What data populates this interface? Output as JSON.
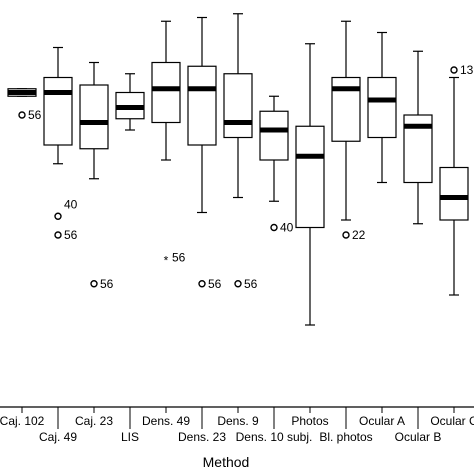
{
  "chart_data": {
    "type": "boxplot",
    "xlabel": "Method",
    "ylim": [
      0,
      100
    ],
    "grid": false,
    "categories": [
      "Caj. 102",
      "Caj. 49",
      "Caj. 23",
      "LIS",
      "Dens. 49",
      "Dens. 23",
      "Dens. 9",
      "Dens. 10 subj.",
      "Photos",
      "Bl. photos",
      "Ocular A",
      "Ocular B",
      "Ocular C"
    ],
    "boxes": [
      {
        "category": "Caj. 102",
        "whisker_low": 77,
        "q1": 77,
        "median": 78,
        "q3": 79,
        "whisker_high": 79,
        "outliers": [
          {
            "value": 72,
            "label": "56",
            "marker": "circle"
          }
        ]
      },
      {
        "category": "Caj. 49",
        "whisker_low": 59,
        "q1": 64,
        "median": 78,
        "q3": 82,
        "whisker_high": 90,
        "outliers": [
          {
            "value": 45,
            "label": "40",
            "marker": "circle"
          },
          {
            "value": 40,
            "label": "56",
            "marker": "circle"
          }
        ]
      },
      {
        "category": "Caj. 23",
        "whisker_low": 55,
        "q1": 63,
        "median": 70,
        "q3": 80,
        "whisker_high": 86,
        "outliers": [
          {
            "value": 27,
            "label": "56",
            "marker": "circle"
          }
        ]
      },
      {
        "category": "LIS",
        "whisker_low": 68,
        "q1": 71,
        "median": 74,
        "q3": 78,
        "whisker_high": 83,
        "outliers": []
      },
      {
        "category": "Dens. 49",
        "whisker_low": 60,
        "q1": 70,
        "median": 79,
        "q3": 86,
        "whisker_high": 97,
        "outliers": [
          {
            "value": 34,
            "label": "56",
            "marker": "star"
          }
        ]
      },
      {
        "category": "Dens. 23",
        "whisker_low": 46,
        "q1": 64,
        "median": 79,
        "q3": 85,
        "whisker_high": 98,
        "outliers": [
          {
            "value": 27,
            "label": "56",
            "marker": "circle"
          }
        ]
      },
      {
        "category": "Dens. 9",
        "whisker_low": 50,
        "q1": 66,
        "median": 70,
        "q3": 83,
        "whisker_high": 99,
        "outliers": [
          {
            "value": 27,
            "label": "56",
            "marker": "circle"
          }
        ]
      },
      {
        "category": "Dens. 10 subj.",
        "whisker_low": 49,
        "q1": 60,
        "median": 68,
        "q3": 73,
        "whisker_high": 77,
        "outliers": [
          {
            "value": 42,
            "label": "40",
            "marker": "circle"
          }
        ]
      },
      {
        "category": "Photos",
        "whisker_low": 16,
        "q1": 42,
        "median": 61,
        "q3": 69,
        "whisker_high": 91,
        "outliers": []
      },
      {
        "category": "Bl. photos",
        "whisker_low": 44,
        "q1": 65,
        "median": 79,
        "q3": 82,
        "whisker_high": 97,
        "outliers": [
          {
            "value": 40,
            "label": "22",
            "marker": "circle"
          }
        ]
      },
      {
        "category": "Ocular A",
        "whisker_low": 54,
        "q1": 66,
        "median": 76,
        "q3": 82,
        "whisker_high": 94,
        "outliers": []
      },
      {
        "category": "Ocular B",
        "whisker_low": 43,
        "q1": 54,
        "median": 69,
        "q3": 72,
        "whisker_high": 89,
        "outliers": []
      },
      {
        "category": "Ocular C",
        "whisker_low": 24,
        "q1": 44,
        "median": 50,
        "q3": 58,
        "whisker_high": 82,
        "outliers": [
          {
            "value": 84,
            "label": "13",
            "marker": "circle"
          }
        ]
      }
    ]
  }
}
